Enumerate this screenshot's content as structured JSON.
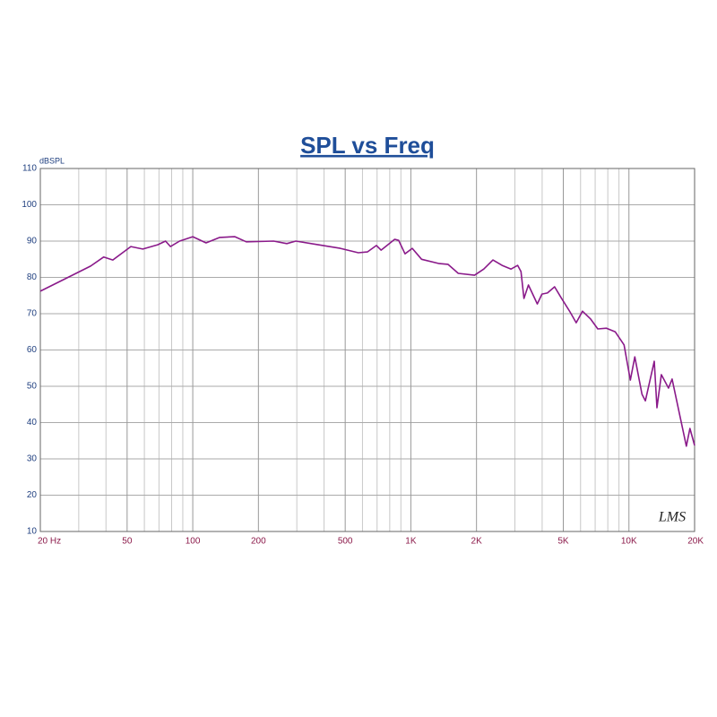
{
  "chart_data": {
    "type": "line",
    "title": "SPL vs Freq",
    "ylabel": "dBSPL",
    "annotation": "LMS",
    "xscale": "log",
    "grid": true,
    "xlim": [
      20,
      20000
    ],
    "ylim": [
      10,
      110
    ],
    "xticks": [
      {
        "value": 20,
        "label": "20 Hz"
      },
      50,
      100,
      200,
      500,
      {
        "value": 1000,
        "label": "1K"
      },
      {
        "value": 2000,
        "label": "2K"
      },
      {
        "value": 5000,
        "label": "5K"
      },
      {
        "value": 10000,
        "label": "10K"
      },
      {
        "value": 20000,
        "label": "20K"
      }
    ],
    "xminor": [
      30,
      40,
      60,
      70,
      80,
      90,
      300,
      400,
      600,
      700,
      800,
      900,
      3000,
      4000,
      6000,
      7000,
      8000,
      9000
    ],
    "yticks": [
      10,
      20,
      30,
      40,
      50,
      60,
      70,
      80,
      90,
      100,
      110
    ],
    "x": [
      20,
      25,
      34,
      39,
      43,
      52,
      59,
      69,
      75,
      79,
      87,
      100,
      115,
      133,
      156,
      176,
      235,
      270,
      297,
      376,
      475,
      574,
      632,
      695,
      730,
      843,
      879,
      940,
      1015,
      1120,
      1350,
      1480,
      1650,
      1960,
      2160,
      2380,
      2620,
      2880,
      3090,
      3200,
      3300,
      3460,
      3800,
      3990,
      4230,
      4560,
      4890,
      5370,
      5730,
      6120,
      6680,
      7200,
      7890,
      8660,
      9500,
      10150,
      10640,
      11480,
      11900,
      13070,
      13440,
      14080,
      15180,
      15770,
      17000,
      18330,
      19040,
      20000
    ],
    "series": [
      {
        "name": "SPL",
        "color": "#8a1a8a",
        "values": [
          76.2,
          79.1,
          83.1,
          85.6,
          84.8,
          88.5,
          87.8,
          89.0,
          90.0,
          88.5,
          90.0,
          91.2,
          89.5,
          91.0,
          91.2,
          89.8,
          90.0,
          89.3,
          90.0,
          89.0,
          88.0,
          86.8,
          87.0,
          88.8,
          87.5,
          90.5,
          90.2,
          86.5,
          88.0,
          85.0,
          83.8,
          83.6,
          81.1,
          80.6,
          82.3,
          84.8,
          83.3,
          82.3,
          83.3,
          81.6,
          74.2,
          77.9,
          72.7,
          75.4,
          75.7,
          77.4,
          74.4,
          70.5,
          67.5,
          70.7,
          68.5,
          65.8,
          66.0,
          65.0,
          61.4,
          51.7,
          58.1,
          47.8,
          46.0,
          56.9,
          44.1,
          53.2,
          49.5,
          52.0,
          42.8,
          33.5,
          38.4,
          33.7
        ]
      }
    ]
  }
}
